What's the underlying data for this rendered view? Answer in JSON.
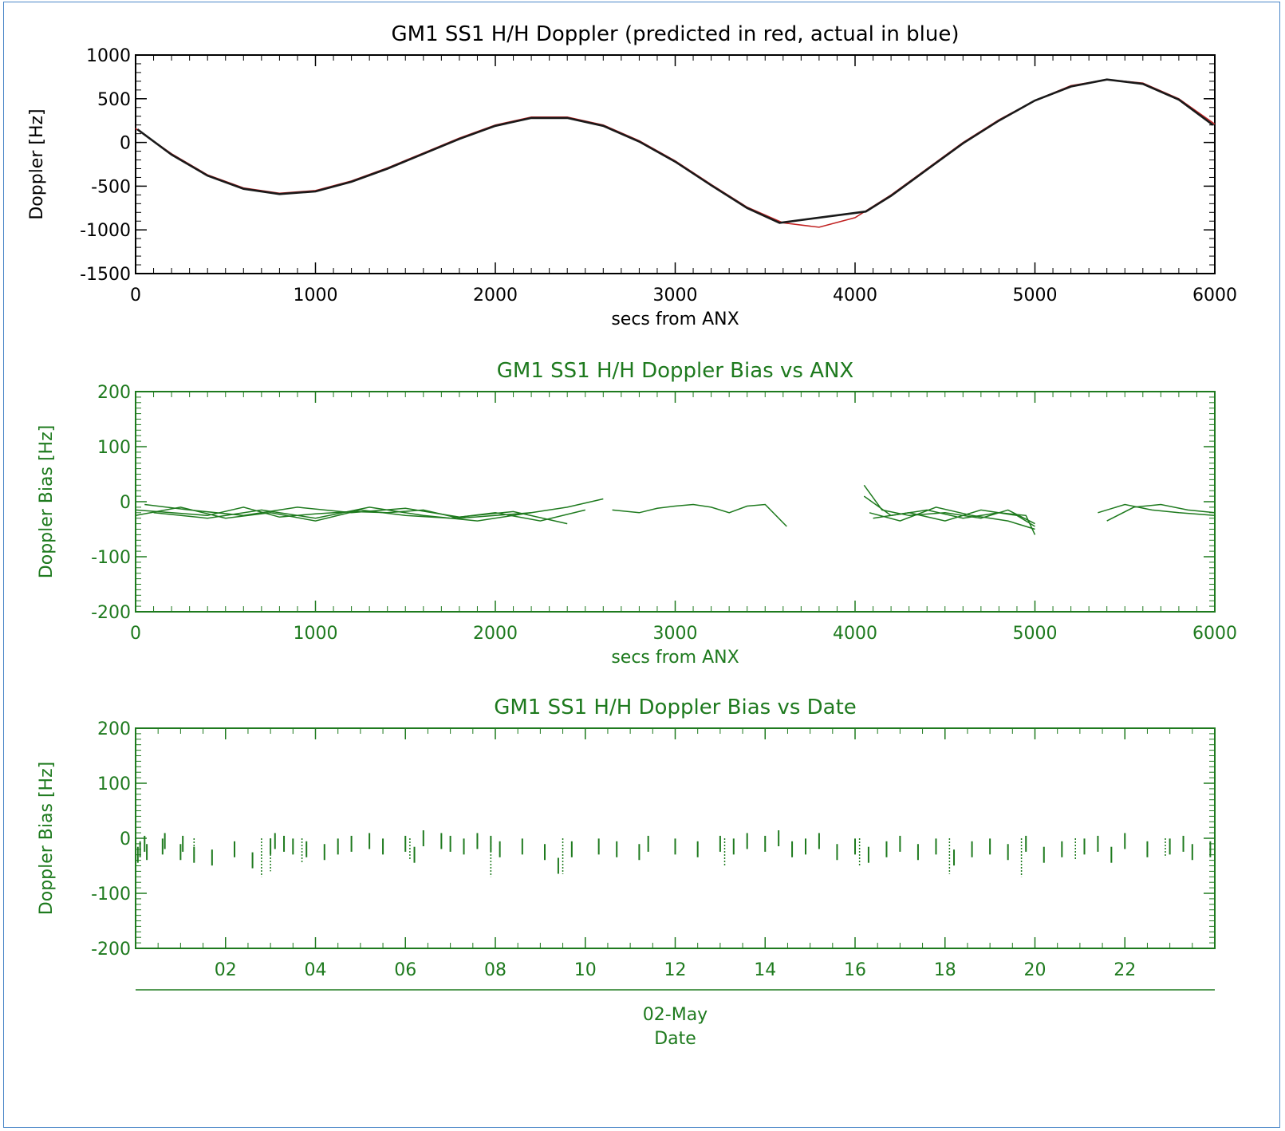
{
  "chart_data": [
    {
      "type": "line",
      "title": "GM1 SS1 H/H Doppler (predicted in red, actual in blue)",
      "xlabel": "secs from ANX",
      "ylabel": "Doppler [Hz]",
      "xlim": [
        0,
        6000
      ],
      "ylim": [
        -1500,
        1000
      ],
      "xticks": [
        0,
        1000,
        2000,
        3000,
        4000,
        5000,
        6000
      ],
      "yticks": [
        -1500,
        -1000,
        -500,
        0,
        500,
        1000
      ],
      "grid": false,
      "colors": {
        "axes": "#000000",
        "predicted": "#c02020",
        "actual": "#1a1a1a"
      },
      "series": [
        {
          "name": "predicted",
          "x": [
            0,
            200,
            400,
            600,
            800,
            1000,
            1200,
            1400,
            1600,
            1800,
            2000,
            2200,
            2400,
            2600,
            2800,
            3000,
            3200,
            3400,
            3600,
            3800,
            4000,
            4200,
            4400,
            4600,
            4800,
            5000,
            5200,
            5400,
            5600,
            5800,
            6000
          ],
          "values": [
            160,
            -130,
            -370,
            -520,
            -580,
            -550,
            -440,
            -290,
            -120,
            50,
            200,
            290,
            290,
            200,
            20,
            -210,
            -480,
            -740,
            -920,
            -970,
            -860,
            -600,
            -300,
            0,
            260,
            480,
            650,
            720,
            680,
            500,
            210
          ]
        },
        {
          "name": "actual",
          "x": [
            10,
            200,
            400,
            600,
            800,
            1000,
            1200,
            1400,
            1600,
            1800,
            2000,
            2200,
            2400,
            2600,
            2800,
            3000,
            3200,
            3400,
            3580,
            4060,
            4200,
            4400,
            4600,
            4800,
            5000,
            5200,
            5400,
            5600,
            5800,
            5990
          ],
          "values": [
            150,
            -140,
            -380,
            -530,
            -590,
            -560,
            -450,
            -300,
            -130,
            40,
            190,
            280,
            280,
            190,
            10,
            -220,
            -490,
            -750,
            -920,
            -790,
            -610,
            -310,
            -10,
            250,
            480,
            640,
            720,
            670,
            490,
            200
          ]
        }
      ]
    },
    {
      "type": "line",
      "title": "GM1 SS1 H/H Doppler Bias vs ANX",
      "xlabel": "secs from ANX",
      "ylabel": "Doppler Bias [Hz]",
      "xlim": [
        0,
        6000
      ],
      "ylim": [
        -200,
        200
      ],
      "xticks": [
        0,
        1000,
        2000,
        3000,
        4000,
        5000,
        6000
      ],
      "yticks": [
        -200,
        -100,
        0,
        100,
        200
      ],
      "grid": false,
      "colors": {
        "axes": "#1e7a1e",
        "data": "#1e7a1e"
      },
      "series": [
        {
          "x": [
            0,
            200,
            400,
            600,
            800,
            1000,
            1200,
            1400,
            1600,
            1800,
            2000,
            2200,
            2400,
            2600
          ],
          "values": [
            -15,
            -20,
            -25,
            -10,
            -28,
            -22,
            -18,
            -20,
            -15,
            -30,
            -25,
            -20,
            -10,
            5
          ]
        },
        {
          "x": [
            0,
            250,
            500,
            750,
            1000,
            1250,
            1500,
            1750,
            2000,
            2250,
            2500
          ],
          "values": [
            -25,
            -10,
            -30,
            -20,
            -35,
            -15,
            -25,
            -30,
            -20,
            -35,
            -15
          ]
        },
        {
          "x": [
            50,
            300,
            600,
            900,
            1200,
            1500,
            1800,
            2100,
            2400
          ],
          "values": [
            -5,
            -15,
            -25,
            -10,
            -20,
            -12,
            -28,
            -18,
            -40
          ]
        },
        {
          "x": [
            100,
            400,
            700,
            1000,
            1300,
            1600,
            1900,
            2200
          ],
          "values": [
            -20,
            -30,
            -15,
            -30,
            -10,
            -25,
            -35,
            -20
          ]
        },
        {
          "x": [
            2650,
            2800,
            2900,
            3000,
            3100,
            3200,
            3300,
            3400,
            3500,
            3620
          ],
          "values": [
            -15,
            -20,
            -12,
            -8,
            -5,
            -10,
            -20,
            -8,
            -5,
            -45
          ]
        },
        {
          "x": [
            4050,
            4150,
            4300,
            4500,
            4700,
            4850,
            5000
          ],
          "values": [
            30,
            -15,
            -25,
            -20,
            -30,
            -15,
            -40
          ]
        },
        {
          "x": [
            4050,
            4200,
            4400,
            4600,
            4800,
            4950,
            5000
          ],
          "values": [
            10,
            -25,
            -15,
            -30,
            -20,
            -25,
            -60
          ]
        },
        {
          "x": [
            4080,
            4250,
            4450,
            4650,
            4850,
            5000
          ],
          "values": [
            -20,
            -35,
            -10,
            -25,
            -35,
            -50
          ]
        },
        {
          "x": [
            4100,
            4300,
            4500,
            4700,
            4900,
            5000
          ],
          "values": [
            -30,
            -20,
            -35,
            -15,
            -25,
            -45
          ]
        },
        {
          "x": [
            5350,
            5500,
            5650,
            5800,
            6000
          ],
          "values": [
            -20,
            -5,
            -15,
            -20,
            -25
          ]
        },
        {
          "x": [
            5400,
            5550,
            5700,
            5850,
            6000
          ],
          "values": [
            -35,
            -10,
            -5,
            -15,
            -20
          ]
        }
      ]
    },
    {
      "type": "line",
      "title": "GM1 SS1 H/H Doppler Bias vs Date",
      "xlabel": "02-May",
      "xlabel2": "Date",
      "ylabel": "Doppler Bias [Hz]",
      "xlim": [
        0.0,
        24.0
      ],
      "ylim": [
        -200,
        200
      ],
      "xticks": [
        "02",
        "04",
        "06",
        "08",
        "10",
        "12",
        "14",
        "16",
        "18",
        "20",
        "22"
      ],
      "xtick_values": [
        2,
        4,
        6,
        8,
        10,
        12,
        14,
        16,
        18,
        20,
        22
      ],
      "yticks": [
        -200,
        -100,
        0,
        100,
        200
      ],
      "grid": false,
      "colors": {
        "axes": "#1e7a1e",
        "data": "#1e7a1e"
      },
      "series": [
        {
          "x": [
            0.05,
            0.1,
            0.2,
            0.25,
            0.6,
            0.65,
            1.0,
            1.05,
            1.3,
            1.7,
            2.2,
            2.6,
            3.0,
            3.1,
            3.3,
            3.5,
            3.8,
            4.2,
            4.5,
            4.8,
            5.2,
            5.5,
            6.0,
            6.2,
            6.4,
            6.8,
            7.0,
            7.3,
            7.6,
            7.9,
            8.1,
            8.6,
            9.1,
            9.4,
            9.7,
            10.3,
            10.7,
            11.2,
            11.4,
            12.0,
            12.5,
            13.0,
            13.3,
            13.6,
            14.0,
            14.3,
            14.6,
            14.9,
            15.2,
            15.6,
            16.0,
            16.3,
            16.7,
            17.0,
            17.4,
            17.8,
            18.2,
            18.6,
            19.0,
            19.4,
            19.8,
            20.2,
            20.6,
            21.1,
            21.4,
            21.7,
            22.0,
            22.5,
            23.0,
            23.3,
            23.5,
            23.9
          ],
          "values": [
            -30,
            -20,
            -10,
            -25,
            -15,
            -5,
            -25,
            -10,
            -30,
            -35,
            -20,
            -40,
            -15,
            -5,
            -10,
            -15,
            -20,
            -25,
            -15,
            -10,
            -5,
            -15,
            -10,
            -30,
            0,
            -5,
            -10,
            -15,
            -5,
            -10,
            -20,
            -15,
            -25,
            -50,
            -20,
            -15,
            -20,
            -25,
            -10,
            -15,
            -20,
            -10,
            -15,
            -5,
            -10,
            0,
            -20,
            -15,
            -5,
            -25,
            -15,
            -30,
            -20,
            -10,
            -25,
            -15,
            -35,
            -20,
            -15,
            -25,
            -10,
            -30,
            -20,
            -15,
            -10,
            -30,
            -5,
            -20,
            -15,
            -10,
            -25,
            -20
          ],
          "spikes": [
            [
              1.3,
              -40
            ],
            [
              2.8,
              -70
            ],
            [
              3.0,
              -60
            ],
            [
              3.7,
              -45
            ],
            [
              6.1,
              -40
            ],
            [
              7.9,
              -70
            ],
            [
              9.5,
              -65
            ],
            [
              13.1,
              -50
            ],
            [
              16.1,
              -50
            ],
            [
              18.1,
              -65
            ],
            [
              19.7,
              -70
            ],
            [
              20.9,
              -40
            ],
            [
              22.9,
              -35
            ]
          ]
        }
      ]
    }
  ]
}
